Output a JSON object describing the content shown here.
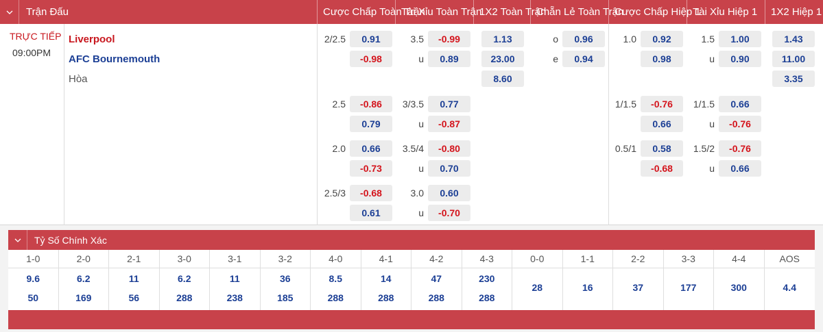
{
  "header": {
    "columns": [
      "Trận Đấu",
      "Cược Chấp Toàn Trận",
      "Tài Xỉu Toàn Trận",
      "1X2 Toàn Trận",
      "Chẵn Lẻ Toàn Trận",
      "Cược Chấp Hiệp 1",
      "Tài Xỉu Hiệp 1",
      "1X2 Hiệp 1"
    ]
  },
  "match": {
    "status": "TRỰC TIẾP",
    "time": "09:00PM",
    "home": "Liverpool",
    "away": "AFC Bournemouth",
    "draw": "Hòa"
  },
  "markets": {
    "ft_handicap": [
      {
        "line": "2/2.5",
        "home": "0.91",
        "away": "-0.98"
      },
      {
        "line": "2.5",
        "home": "-0.86",
        "away": "0.79"
      },
      {
        "line": "2.0",
        "home": "0.66",
        "away": "-0.73"
      },
      {
        "line": "2.5/3",
        "home": "-0.68",
        "away": "0.61"
      }
    ],
    "ft_overunder": [
      {
        "line": "3.5",
        "under_label": "u",
        "over": "-0.99",
        "under": "0.89"
      },
      {
        "line": "3/3.5",
        "under_label": "u",
        "over": "0.77",
        "under": "-0.87"
      },
      {
        "line": "3.5/4",
        "under_label": "u",
        "over": "-0.80",
        "under": "0.70"
      },
      {
        "line": "3.0",
        "under_label": "u",
        "over": "0.60",
        "under": "-0.70"
      }
    ],
    "ft_1x2": [
      "1.13",
      "23.00",
      "8.60"
    ],
    "ft_oddeven": [
      {
        "label": "o",
        "value": "0.96"
      },
      {
        "label": "e",
        "value": "0.94"
      }
    ],
    "h1_handicap": [
      {
        "line": "1.0",
        "home": "0.92",
        "away": "0.98"
      },
      {
        "line": "1/1.5",
        "home": "-0.76",
        "away": "0.66"
      },
      {
        "line": "0.5/1",
        "home": "0.58",
        "away": "-0.68"
      }
    ],
    "h1_overunder": [
      {
        "line": "1.5",
        "under_label": "u",
        "over": "1.00",
        "under": "0.90"
      },
      {
        "line": "1/1.5",
        "under_label": "u",
        "over": "0.66",
        "under": "-0.76"
      },
      {
        "line": "1.5/2",
        "under_label": "u",
        "over": "-0.76",
        "under": "0.66"
      }
    ],
    "h1_1x2": [
      "1.43",
      "11.00",
      "3.35"
    ]
  },
  "correct_score": {
    "title": "Tỷ Số Chính Xác",
    "columns": [
      {
        "score": "1-0",
        "home": "9.6",
        "away": "50"
      },
      {
        "score": "2-0",
        "home": "6.2",
        "away": "169"
      },
      {
        "score": "2-1",
        "home": "11",
        "away": "56"
      },
      {
        "score": "3-0",
        "home": "6.2",
        "away": "288"
      },
      {
        "score": "3-1",
        "home": "11",
        "away": "238"
      },
      {
        "score": "3-2",
        "home": "36",
        "away": "185"
      },
      {
        "score": "4-0",
        "home": "8.5",
        "away": "288"
      },
      {
        "score": "4-1",
        "home": "14",
        "away": "288"
      },
      {
        "score": "4-2",
        "home": "47",
        "away": "288"
      },
      {
        "score": "4-3",
        "home": "230",
        "away": "288"
      },
      {
        "score": "0-0",
        "single": "28"
      },
      {
        "score": "1-1",
        "single": "16"
      },
      {
        "score": "2-2",
        "single": "37"
      },
      {
        "score": "3-3",
        "single": "177"
      },
      {
        "score": "4-4",
        "single": "300"
      },
      {
        "score": "AOS",
        "single": "4.4"
      }
    ]
  },
  "icons": {
    "header_toggle": "chevron-down-icon",
    "section_toggle": "chevron-down-icon"
  },
  "colors": {
    "brand_red": "#c8424a",
    "positive_odds": "#1c3f95",
    "negative_odds": "#d4141c",
    "live": "#c8171e"
  }
}
